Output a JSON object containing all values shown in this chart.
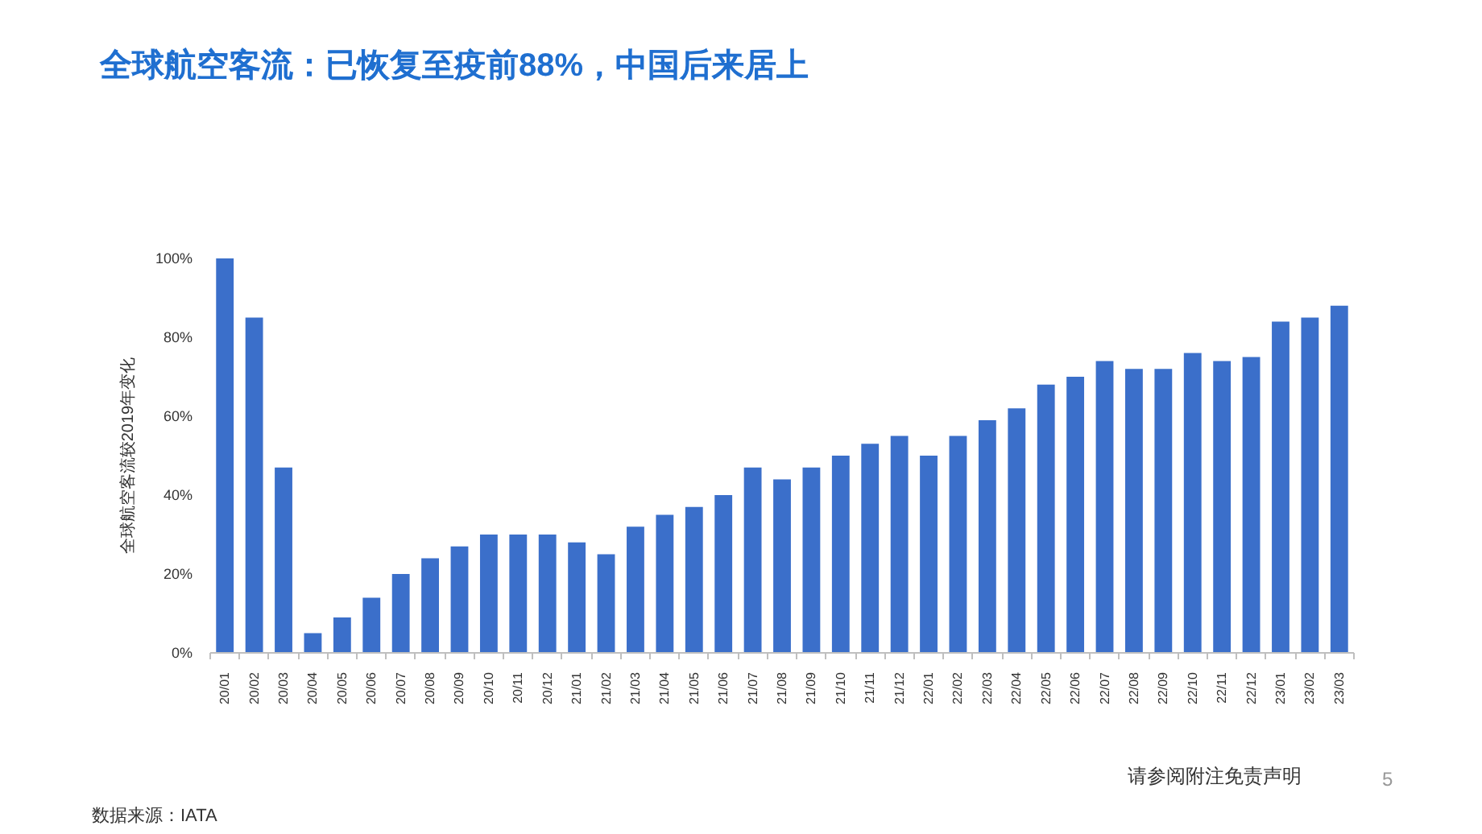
{
  "chart_data": {
    "type": "bar",
    "title": "全球航空客流：已恢复至疫前88%，中国后来居上",
    "ylabel": "全球航空客流较2019年变化",
    "categories": [
      "20/01",
      "20/02",
      "20/03",
      "20/04",
      "20/05",
      "20/06",
      "20/07",
      "20/08",
      "20/09",
      "20/10",
      "20/11",
      "20/12",
      "21/01",
      "21/02",
      "21/03",
      "21/04",
      "21/05",
      "21/06",
      "21/07",
      "21/08",
      "21/09",
      "21/10",
      "21/11",
      "21/12",
      "22/01",
      "22/02",
      "22/03",
      "22/04",
      "22/05",
      "22/06",
      "22/07",
      "22/08",
      "22/09",
      "22/10",
      "22/11",
      "22/12",
      "23/01",
      "23/02",
      "23/03"
    ],
    "values": [
      100,
      85,
      47,
      5,
      9,
      14,
      20,
      24,
      27,
      30,
      30,
      30,
      28,
      25,
      32,
      35,
      37,
      40,
      47,
      44,
      47,
      50,
      53,
      55,
      50,
      55,
      59,
      62,
      68,
      70,
      74,
      72,
      72,
      76,
      74,
      75,
      84,
      85,
      88
    ],
    "color": "#3b6fca",
    "ylim": [
      0,
      100
    ],
    "yticks": [
      {
        "value": 0,
        "label": "0%"
      },
      {
        "value": 20,
        "label": "20%"
      },
      {
        "value": 40,
        "label": "40%"
      },
      {
        "value": 60,
        "label": "60%"
      },
      {
        "value": 80,
        "label": "80%"
      },
      {
        "value": 100,
        "label": "100%"
      }
    ],
    "annotations": [
      "数据来源：IATA",
      "请参阅附注免责声明",
      "5"
    ]
  }
}
